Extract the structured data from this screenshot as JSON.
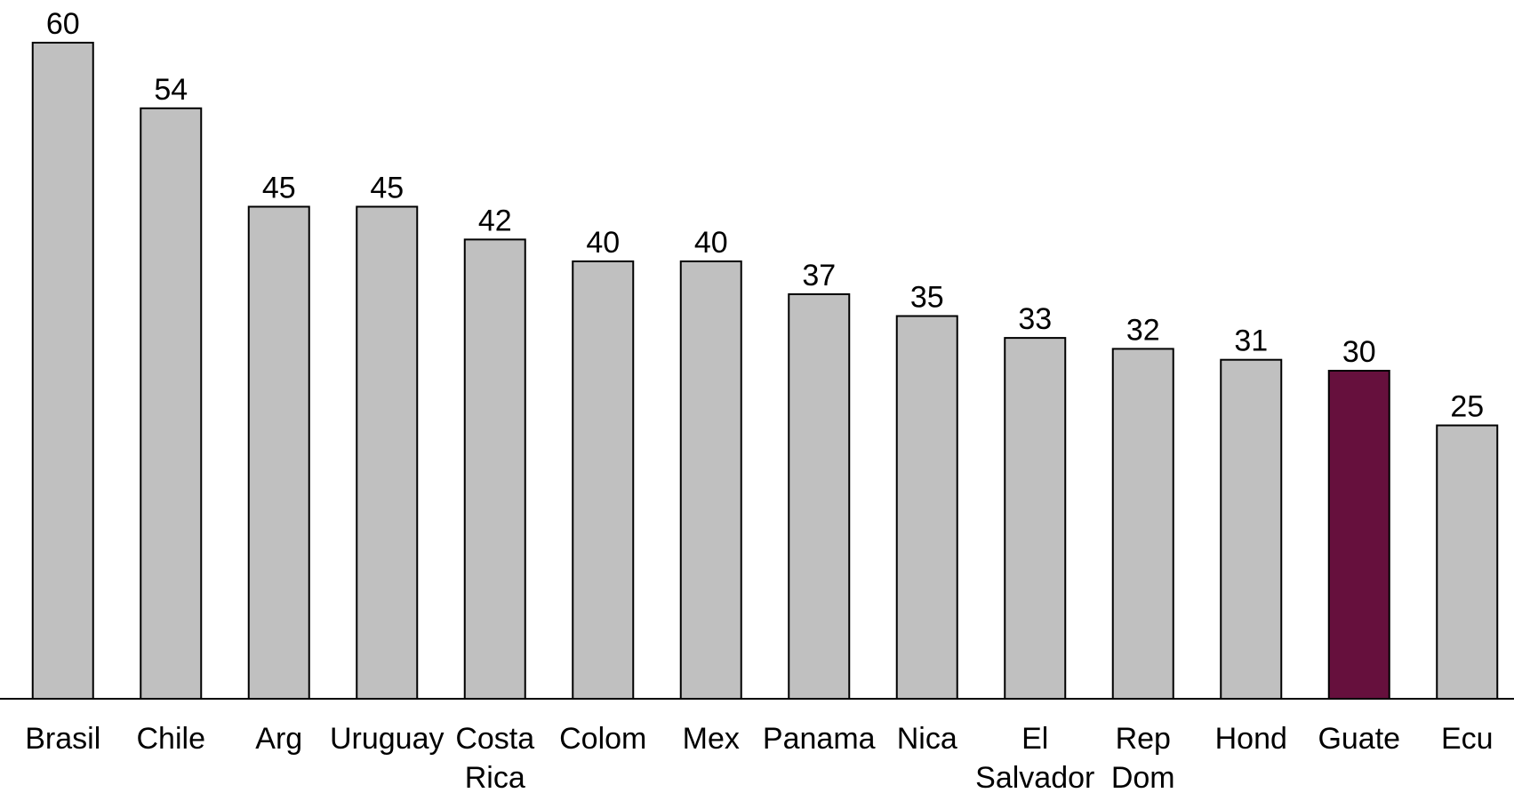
{
  "chart_data": {
    "type": "bar",
    "categories": [
      [
        "Brasil"
      ],
      [
        "Chile"
      ],
      [
        "Arg"
      ],
      [
        "Uruguay"
      ],
      [
        "Costa",
        "Rica"
      ],
      [
        "Colom"
      ],
      [
        "Mex"
      ],
      [
        "Panama"
      ],
      [
        "Nica"
      ],
      [
        "El",
        "Salvador"
      ],
      [
        "Rep",
        "Dom"
      ],
      [
        "Hond"
      ],
      [
        "Guate"
      ],
      [
        "Ecu"
      ]
    ],
    "values": [
      60,
      54,
      45,
      45,
      42,
      40,
      40,
      37,
      35,
      33,
      32,
      31,
      30,
      25
    ],
    "value_labels": [
      "60",
      "54",
      "45",
      "45",
      "42",
      "40",
      "40",
      "37",
      "35",
      "33",
      "32",
      "31",
      "30",
      "25"
    ],
    "highlight_index": 12,
    "colors": {
      "default": "#c0c0c0",
      "highlight": "#66103d",
      "stroke": "#000000"
    },
    "ylim": [
      0,
      60
    ],
    "grid": false,
    "legend": "none",
    "title": "",
    "xlabel": "",
    "ylabel": ""
  }
}
